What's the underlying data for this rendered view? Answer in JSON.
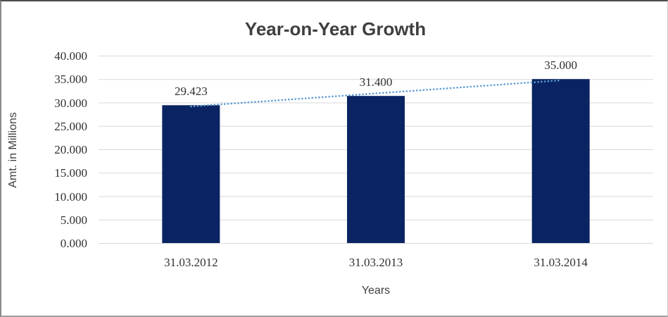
{
  "chart_data": {
    "type": "bar",
    "title": "Year-on-Year Growth",
    "xlabel": "Years",
    "ylabel": "Amt. in Millions",
    "categories": [
      "31.03.2012",
      "31.03.2013",
      "31.03.2014"
    ],
    "values": [
      29.423,
      31.4,
      35.0
    ],
    "data_labels": [
      "29.423",
      "31.400",
      "35.000"
    ],
    "y_ticks": [
      0,
      5,
      10,
      15,
      20,
      25,
      30,
      35,
      40
    ],
    "y_tick_labels": [
      "0.000",
      "5.000",
      "10.000",
      "15.000",
      "20.000",
      "25.000",
      "30.000",
      "35.000",
      "40.000"
    ],
    "ylim": [
      0,
      40
    ],
    "grid": true,
    "legend": "none",
    "colors": {
      "bar": "#0a2463",
      "trendline": "#5b9bd5",
      "gridline": "#d9d9d9",
      "label_text": "#303030",
      "title_text": "#3f3f3f"
    },
    "trendline": {
      "kind": "linear",
      "style": "dotted"
    }
  }
}
